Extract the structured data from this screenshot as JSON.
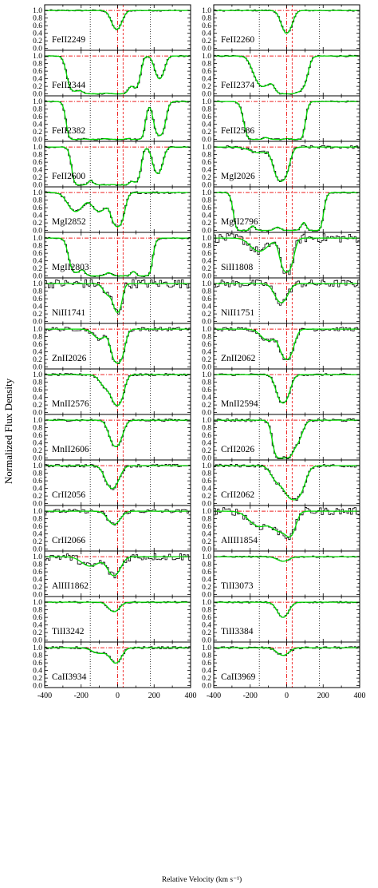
{
  "chart_data": {
    "type": "line",
    "ylabel": "Normalized Flux Density",
    "xlabel": "Relative Velocity (km s⁻¹)",
    "xlim": [
      -400,
      400
    ],
    "ylim": [
      -0.05,
      1.15
    ],
    "x_ticks": [
      "-400",
      "-200",
      "0",
      "200",
      "400"
    ],
    "y_ticks": [
      "0.0",
      "0.2",
      "0.4",
      "0.6",
      "0.8",
      "1.0"
    ],
    "reference_lines_x": {
      "red_dashdot": [
        0
      ],
      "red_dashed": [
        30
      ],
      "black_dotted": [
        -150,
        180
      ]
    },
    "continuum_level": 1.0,
    "colors": {
      "data": "#000000",
      "fit": "#00dd00",
      "reference": "#ee2222",
      "frame": "#000000"
    },
    "panels": [
      {
        "label": "FeII2249",
        "components": [
          [
            -5,
            0.5,
            40
          ]
        ],
        "noise": 0.02
      },
      {
        "label": "FeII2260",
        "components": [
          [
            0,
            0.6,
            40
          ]
        ],
        "noise": 0.02
      },
      {
        "label": "FeII2344",
        "components": [
          [
            -240,
            0.9,
            40
          ],
          [
            -130,
            1.0,
            70
          ],
          [
            0,
            1.0,
            60
          ],
          [
            100,
            0.8,
            30
          ],
          [
            230,
            0.6,
            35
          ]
        ],
        "noise": 0.02
      },
      {
        "label": "FeII2374",
        "components": [
          [
            -130,
            0.8,
            60
          ],
          [
            0,
            1.0,
            60
          ],
          [
            80,
            0.8,
            40
          ]
        ],
        "noise": 0.02
      },
      {
        "label": "FeII2382",
        "components": [
          [
            -230,
            1.0,
            40
          ],
          [
            -130,
            1.0,
            70
          ],
          [
            0,
            1.0,
            60
          ],
          [
            100,
            1.0,
            40
          ],
          [
            230,
            0.9,
            35
          ]
        ],
        "noise": 0.02
      },
      {
        "label": "FeII2586",
        "components": [
          [
            -170,
            1.0,
            50
          ],
          [
            -50,
            1.0,
            60
          ],
          [
            50,
            1.0,
            40
          ]
        ],
        "noise": 0.02
      },
      {
        "label": "FeII2600",
        "components": [
          [
            -200,
            1.0,
            40
          ],
          [
            -80,
            1.0,
            60
          ],
          [
            20,
            1.0,
            50
          ],
          [
            100,
            0.9,
            30
          ],
          [
            220,
            0.7,
            35
          ]
        ],
        "noise": 0.02
      },
      {
        "label": "MgI2026",
        "components": [
          [
            -150,
            0.15,
            80
          ],
          [
            -30,
            0.9,
            45
          ]
        ],
        "noise": 0.04
      },
      {
        "label": "MgI2852",
        "components": [
          [
            -230,
            0.5,
            60
          ],
          [
            -100,
            0.5,
            60
          ],
          [
            0,
            0.9,
            40
          ]
        ],
        "noise": 0.03
      },
      {
        "label": "MgII2796",
        "components": [
          [
            -240,
            1.0,
            40
          ],
          [
            -120,
            1.0,
            60
          ],
          [
            20,
            1.0,
            60
          ],
          [
            150,
            1.0,
            40
          ]
        ],
        "noise": 0.02
      },
      {
        "label": "MgII2803",
        "components": [
          [
            -230,
            0.9,
            40
          ],
          [
            -120,
            1.0,
            60
          ],
          [
            20,
            1.0,
            60
          ],
          [
            140,
            1.0,
            40
          ]
        ],
        "noise": 0.02
      },
      {
        "label": "SiII1808",
        "components": [
          [
            -150,
            0.35,
            70
          ],
          [
            0,
            0.9,
            40
          ]
        ],
        "noise": 0.12
      },
      {
        "label": "NiII1741",
        "components": [
          [
            -50,
            0.3,
            40
          ],
          [
            0,
            0.75,
            30
          ]
        ],
        "noise": 0.12
      },
      {
        "label": "NiII1751",
        "components": [
          [
            -30,
            0.5,
            50
          ]
        ],
        "noise": 0.1
      },
      {
        "label": "ZnII2026",
        "components": [
          [
            -100,
            0.25,
            50
          ],
          [
            0,
            0.9,
            40
          ]
        ],
        "noise": 0.05
      },
      {
        "label": "ZnII2062",
        "components": [
          [
            -100,
            0.3,
            60
          ],
          [
            0,
            0.8,
            45
          ]
        ],
        "noise": 0.05
      },
      {
        "label": "MnII2576",
        "components": [
          [
            -60,
            0.35,
            50
          ],
          [
            0,
            0.8,
            40
          ]
        ],
        "noise": 0.03
      },
      {
        "label": "MnII2594",
        "components": [
          [
            -20,
            0.75,
            45
          ]
        ],
        "noise": 0.03
      },
      {
        "label": "MnII2606",
        "components": [
          [
            -10,
            0.7,
            45
          ]
        ],
        "noise": 0.03
      },
      {
        "label": "CrII2026",
        "components": [
          [
            -20,
            1.0,
            45
          ],
          [
            50,
            0.6,
            45
          ]
        ],
        "noise": 0.04
      },
      {
        "label": "CrII2056",
        "components": [
          [
            -30,
            0.6,
            50
          ]
        ],
        "noise": 0.04
      },
      {
        "label": "CrII2062",
        "components": [
          [
            -50,
            0.4,
            50
          ],
          [
            40,
            0.9,
            60
          ]
        ],
        "noise": 0.04
      },
      {
        "label": "CrII2066",
        "components": [
          [
            -20,
            0.35,
            50
          ]
        ],
        "noise": 0.05
      },
      {
        "label": "AlIII1854",
        "components": [
          [
            -150,
            0.4,
            80
          ],
          [
            -40,
            0.5,
            60
          ],
          [
            20,
            0.6,
            40
          ]
        ],
        "noise": 0.1
      },
      {
        "label": "AlIII1862",
        "components": [
          [
            -150,
            0.25,
            70
          ],
          [
            -20,
            0.5,
            50
          ]
        ],
        "noise": 0.1
      },
      {
        "label": "TiII3073",
        "components": [
          [
            -20,
            0.12,
            50
          ]
        ],
        "noise": 0.02
      },
      {
        "label": "TiII3242",
        "components": [
          [
            -20,
            0.25,
            45
          ]
        ],
        "noise": 0.02
      },
      {
        "label": "TiII3384",
        "components": [
          [
            -20,
            0.4,
            45
          ]
        ],
        "noise": 0.02
      },
      {
        "label": "CaII3934",
        "components": [
          [
            -100,
            0.15,
            60
          ],
          [
            -10,
            0.4,
            45
          ]
        ],
        "noise": 0.03
      },
      {
        "label": "CaII3969",
        "components": [
          [
            -20,
            0.2,
            50
          ]
        ],
        "noise": 0.03
      }
    ]
  }
}
